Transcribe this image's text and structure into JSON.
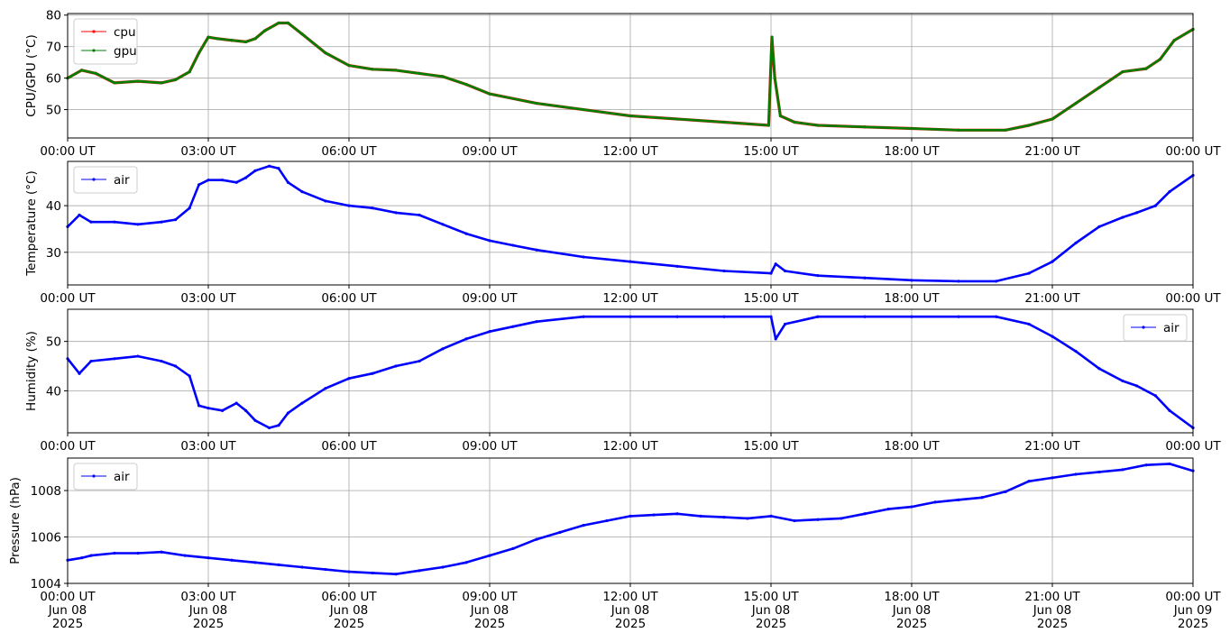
{
  "colors": {
    "cpu": "#ff0000",
    "gpu": "#008000",
    "air": "#0000ff",
    "grid": "#b0b0b0"
  },
  "x_ticks": {
    "times": [
      "00:00 UT",
      "03:00 UT",
      "06:00 UT",
      "09:00 UT",
      "12:00 UT",
      "15:00 UT",
      "18:00 UT",
      "21:00 UT",
      "00:00 UT"
    ],
    "dates": [
      "Jun 08",
      "Jun 08",
      "Jun 08",
      "Jun 08",
      "Jun 08",
      "Jun 08",
      "Jun 08",
      "Jun 08",
      "Jun 09"
    ],
    "years": [
      "2025",
      "2025",
      "2025",
      "2025",
      "2025",
      "2025",
      "2025",
      "2025",
      "2025"
    ]
  },
  "chart_data": [
    {
      "type": "line",
      "ylabel": "CPU/GPU (°C)",
      "ylim": [
        41,
        80.5
      ],
      "yticks": [
        50,
        60,
        70,
        80
      ],
      "grid": true,
      "legend": "top-left",
      "x_unit": "hours since 2025-06-08 00:00 UT",
      "xlim": [
        0,
        24
      ],
      "series": [
        {
          "name": "cpu",
          "color": "#ff0000",
          "x": [
            0,
            0.3,
            0.6,
            1,
            1.5,
            2,
            2.3,
            2.6,
            2.8,
            3,
            3.2,
            3.5,
            3.8,
            4,
            4.2,
            4.5,
            4.7,
            5,
            5.5,
            6,
            6.5,
            7,
            7.5,
            8,
            8.5,
            9,
            10,
            11,
            12,
            13,
            14,
            14.95,
            15.02,
            15.08,
            15.2,
            15.5,
            16,
            17,
            18,
            19,
            20,
            20.5,
            21,
            21.5,
            22,
            22.5,
            23,
            23.3,
            23.6,
            24
          ],
          "y": [
            60,
            62.5,
            61.5,
            58.5,
            59,
            58.5,
            59.5,
            62,
            68,
            73,
            72.5,
            72,
            71.5,
            72.5,
            75,
            77.5,
            77.5,
            74,
            68,
            64,
            62.8,
            62.5,
            61.5,
            60.5,
            58,
            55,
            52,
            50,
            48,
            47,
            46,
            45,
            73,
            60,
            48,
            46,
            45,
            44.5,
            44,
            43.5,
            43.5,
            45,
            47,
            52,
            57,
            62,
            63,
            66,
            72,
            75.5
          ]
        },
        {
          "name": "gpu",
          "color": "#008000",
          "x": [
            0,
            0.3,
            0.6,
            1,
            1.5,
            2,
            2.3,
            2.6,
            2.8,
            3,
            3.2,
            3.5,
            3.8,
            4,
            4.2,
            4.5,
            4.7,
            5,
            5.5,
            6,
            6.5,
            7,
            7.5,
            8,
            8.5,
            9,
            10,
            11,
            12,
            13,
            14,
            14.95,
            15.02,
            15.08,
            15.2,
            15.5,
            16,
            17,
            18,
            19,
            20,
            20.5,
            21,
            21.5,
            22,
            22.5,
            23,
            23.3,
            23.6,
            24
          ],
          "y": [
            60,
            62.5,
            61.5,
            58.5,
            59,
            58.5,
            59.5,
            62,
            68,
            73,
            72.5,
            72,
            71.5,
            72.5,
            75,
            77.5,
            77.5,
            74,
            68,
            64,
            62.8,
            62.5,
            61.5,
            60.5,
            58,
            55,
            52,
            50,
            48,
            47,
            46,
            45,
            73,
            60,
            48,
            46,
            45,
            44.5,
            44,
            43.5,
            43.5,
            45,
            47,
            52,
            57,
            62,
            63,
            66,
            72,
            75.5
          ]
        }
      ]
    },
    {
      "type": "line",
      "ylabel": "Temperature (°C)",
      "ylim": [
        23,
        49.5
      ],
      "yticks": [
        30,
        40
      ],
      "grid": true,
      "legend": "top-left",
      "x_unit": "hours since 2025-06-08 00:00 UT",
      "xlim": [
        0,
        24
      ],
      "series": [
        {
          "name": "air",
          "color": "#0000ff",
          "x": [
            0,
            0.25,
            0.5,
            1,
            1.5,
            2,
            2.3,
            2.6,
            2.8,
            3,
            3.3,
            3.6,
            3.8,
            4,
            4.3,
            4.5,
            4.7,
            5,
            5.5,
            6,
            6.5,
            7,
            7.5,
            8,
            8.5,
            9,
            9.5,
            10,
            11,
            12,
            13,
            14,
            15,
            15.1,
            15.3,
            16,
            17,
            18,
            19,
            19.8,
            20.5,
            21,
            21.5,
            22,
            22.5,
            22.8,
            23.2,
            23.5,
            24
          ],
          "y": [
            35.5,
            38,
            36.5,
            36.5,
            36,
            36.5,
            37,
            39.5,
            44.5,
            45.5,
            45.5,
            45,
            46,
            47.5,
            48.5,
            48,
            45,
            43,
            41,
            40,
            39.5,
            38.5,
            38,
            36,
            34,
            32.5,
            31.5,
            30.5,
            29,
            28,
            27,
            26,
            25.5,
            27.5,
            26,
            25,
            24.5,
            24,
            23.8,
            23.8,
            25.5,
            28,
            32,
            35.5,
            37.5,
            38.5,
            40,
            43,
            46.5
          ]
        }
      ]
    },
    {
      "type": "line",
      "ylabel": "Humidity (%)",
      "ylim": [
        31.5,
        56.5
      ],
      "yticks": [
        40,
        50
      ],
      "grid": true,
      "legend": "top-right",
      "x_unit": "hours since 2025-06-08 00:00 UT",
      "xlim": [
        0,
        24
      ],
      "series": [
        {
          "name": "air",
          "color": "#0000ff",
          "x": [
            0,
            0.25,
            0.5,
            1,
            1.5,
            2,
            2.3,
            2.6,
            2.8,
            3,
            3.3,
            3.6,
            3.8,
            4,
            4.3,
            4.5,
            4.7,
            5,
            5.5,
            6,
            6.5,
            7,
            7.5,
            8,
            8.5,
            9,
            9.5,
            10,
            11,
            12,
            13,
            14,
            15,
            15.1,
            15.3,
            16,
            17,
            18,
            19,
            19.8,
            20.5,
            21,
            21.5,
            22,
            22.5,
            22.8,
            23.2,
            23.5,
            24
          ],
          "y": [
            46.5,
            43.5,
            46,
            46.5,
            47,
            46,
            45,
            43,
            37,
            36.5,
            36,
            37.5,
            36,
            34,
            32.5,
            33,
            35.5,
            37.5,
            40.5,
            42.5,
            43.5,
            45,
            46,
            48.5,
            50.5,
            52,
            53,
            54,
            55,
            55,
            55,
            55,
            55,
            50.5,
            53.5,
            55,
            55,
            55,
            55,
            55,
            53.5,
            51,
            48,
            44.5,
            42,
            41,
            39,
            36,
            32.5
          ]
        }
      ]
    },
    {
      "type": "line",
      "ylabel": "Pressure (hPa)",
      "ylim": [
        1004,
        1009.4
      ],
      "yticks": [
        1004,
        1006,
        1008
      ],
      "grid": true,
      "legend": "top-left",
      "x_unit": "hours since 2025-06-08 00:00 UT",
      "xlim": [
        0,
        24
      ],
      "series": [
        {
          "name": "air",
          "color": "#0000ff",
          "x": [
            0,
            0.3,
            0.5,
            1,
            1.5,
            2,
            2.5,
            3,
            3.5,
            4,
            4.5,
            5,
            5.5,
            6,
            6.5,
            7,
            7.5,
            8,
            8.5,
            9,
            9.5,
            10,
            10.5,
            11,
            11.5,
            12,
            12.5,
            13,
            13.5,
            14,
            14.5,
            15,
            15.5,
            16,
            16.5,
            17,
            17.5,
            18,
            18.5,
            19,
            19.5,
            20,
            20.5,
            21,
            21.5,
            22,
            22.5,
            23,
            23.5,
            24
          ],
          "y": [
            1005.0,
            1005.1,
            1005.2,
            1005.3,
            1005.3,
            1005.35,
            1005.2,
            1005.1,
            1005.0,
            1004.9,
            1004.8,
            1004.7,
            1004.6,
            1004.5,
            1004.45,
            1004.4,
            1004.55,
            1004.7,
            1004.9,
            1005.2,
            1005.5,
            1005.9,
            1006.2,
            1006.5,
            1006.7,
            1006.9,
            1006.95,
            1007.0,
            1006.9,
            1006.85,
            1006.8,
            1006.9,
            1006.7,
            1006.75,
            1006.8,
            1007.0,
            1007.2,
            1007.3,
            1007.5,
            1007.6,
            1007.7,
            1007.95,
            1008.4,
            1008.55,
            1008.7,
            1008.8,
            1008.9,
            1009.1,
            1009.15,
            1008.85
          ]
        }
      ]
    }
  ]
}
